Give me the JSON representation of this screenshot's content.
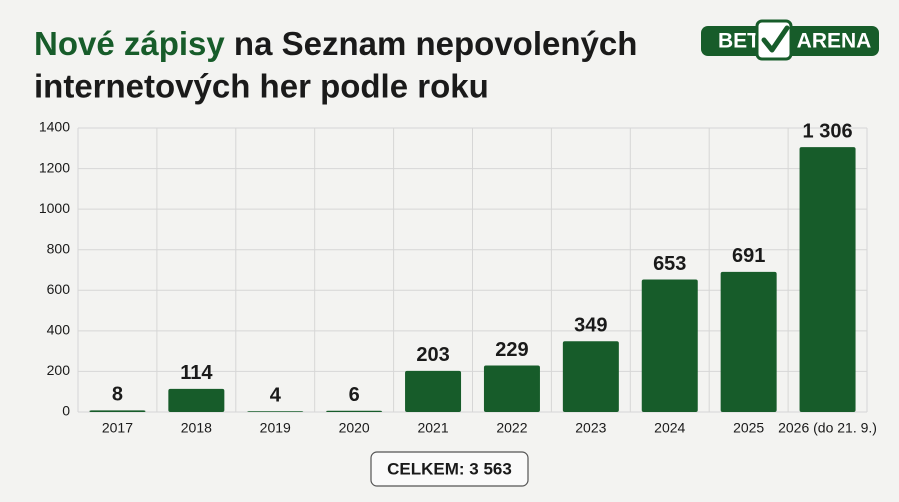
{
  "chart_data": {
    "type": "bar",
    "title": [
      "Nové zápisy",
      "na Seznam nepovolených",
      "internetových her podle roku"
    ],
    "logo": [
      "BET",
      "ARENA"
    ],
    "categories": [
      "2017",
      "2018",
      "2019",
      "2020",
      "2021",
      "2022",
      "2023",
      "2024",
      "2025",
      "2026 (do 21. 9.)"
    ],
    "values": [
      8,
      114,
      4,
      6,
      203,
      229,
      349,
      653,
      691,
      1306
    ],
    "value_labels": [
      "8",
      "114",
      "4",
      "6",
      "203",
      "229",
      "349",
      "653",
      "691",
      "1 306"
    ],
    "color": "#175c2a",
    "ylim": [
      0,
      1400
    ],
    "yticks": [
      0,
      200,
      400,
      600,
      800,
      1000,
      1200,
      1400
    ],
    "grid": true,
    "total": "CELKEM: 3 563"
  }
}
